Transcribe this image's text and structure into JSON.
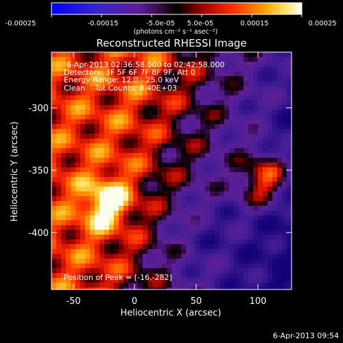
{
  "plot": {
    "title": "Reconstructed RHESSI Image",
    "x_axis_label": "Heliocentric X (arcsec)",
    "y_axis_label": "Heliocentric Y (arcsec)",
    "x_ticks": [
      "-50",
      "0",
      "50",
      "100"
    ],
    "y_ticks": [
      "-300",
      "-350",
      "-400"
    ]
  },
  "colorbar": {
    "ticks": [
      "-0.00025",
      "-0.00015",
      "-5.0e-05",
      "5.0e-05",
      "0.00015",
      "0.00025"
    ],
    "units_label": "(photons cm⁻² s⁻¹ asec⁻²)"
  },
  "annotations": {
    "time_range": "6-Apr-2013 02:36:58.000 to 02:42:58.000",
    "detectors": "Detectors: 3F 5F 6F 7F 8F 9F, Att 0",
    "energy_range": "Energy Range: 12.0 - 25.0 keV",
    "clean_counts": "Clean    Tot Counts: 8.40E+03",
    "peak_position": "Position of Peak = [-16,-282]"
  },
  "footer": {
    "timestamp": "6-Apr-2013 09:54"
  }
}
